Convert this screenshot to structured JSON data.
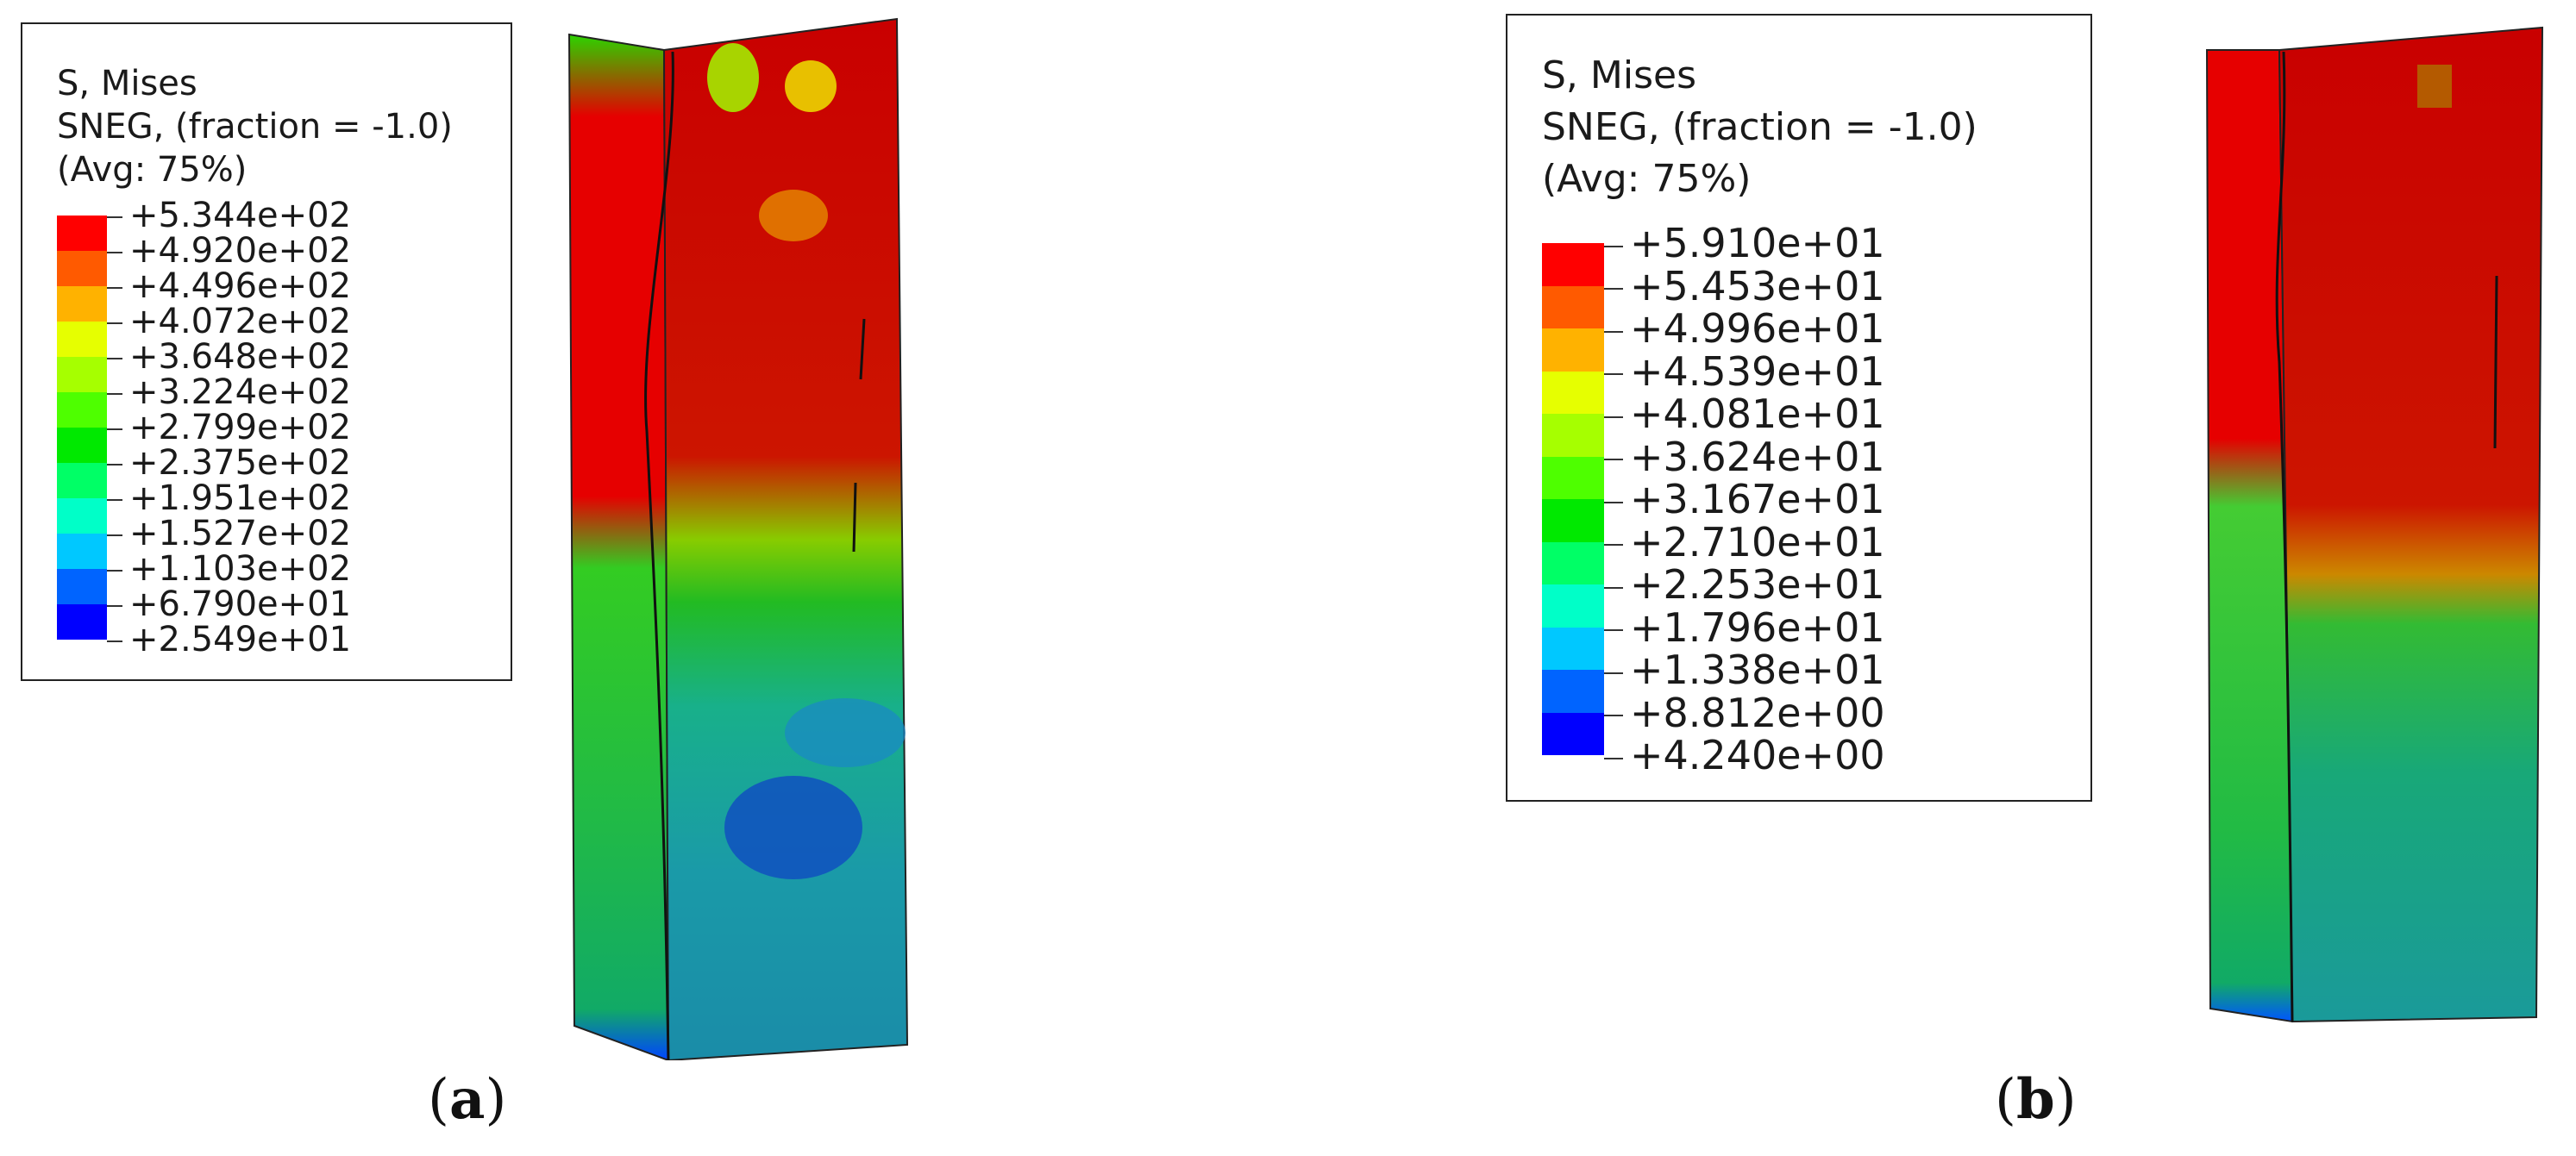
{
  "panels": [
    {
      "id": "a",
      "label_letter": "a",
      "legend": {
        "title": "S, Mises",
        "subtitle": "SNEG, (fraction = -1.0)",
        "average": "(Avg: 75%)",
        "ticks": [
          "+5.344e+02",
          "+4.920e+02",
          "+4.496e+02",
          "+4.072e+02",
          "+3.648e+02",
          "+3.224e+02",
          "+2.799e+02",
          "+2.375e+02",
          "+1.951e+02",
          "+1.527e+02",
          "+1.103e+02",
          "+6.790e+01",
          "+2.549e+01"
        ]
      }
    },
    {
      "id": "b",
      "label_letter": "b",
      "legend": {
        "title": "S, Mises",
        "subtitle": "SNEG, (fraction = -1.0)",
        "average": "(Avg: 75%)",
        "ticks": [
          "+5.910e+01",
          "+5.453e+01",
          "+4.996e+01",
          "+4.539e+01",
          "+4.081e+01",
          "+3.624e+01",
          "+3.167e+01",
          "+2.710e+01",
          "+2.253e+01",
          "+1.796e+01",
          "+1.338e+01",
          "+8.812e+00",
          "+4.240e+00"
        ]
      }
    }
  ],
  "colormap": [
    "#ff0000",
    "#ff5a00",
    "#ffb200",
    "#e6ff00",
    "#a6ff00",
    "#4eff00",
    "#00e900",
    "#00ff66",
    "#00ffc8",
    "#00c8ff",
    "#0064ff",
    "#0000ff"
  ]
}
